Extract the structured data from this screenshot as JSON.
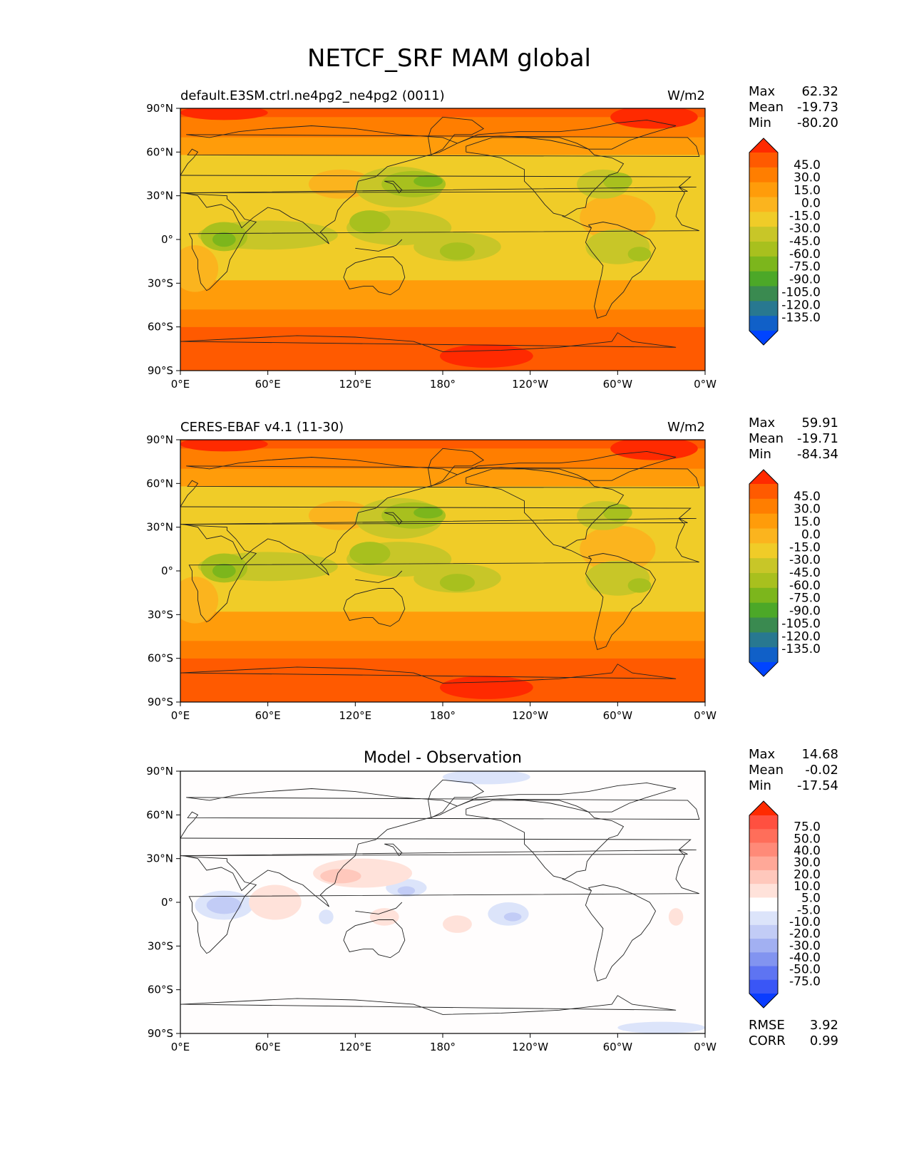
{
  "figure": {
    "title": "NETCF_SRF MAM global"
  },
  "chart_data": [
    {
      "type": "heatmap",
      "name": "test",
      "title_left": "default.E3SM.ctrl.ne4pg2_ne4pg2 (0011)",
      "title_center": "",
      "units": "W/m2",
      "stats": [
        {
          "label": "Max",
          "value": "62.32"
        },
        {
          "label": "Mean",
          "value": "-19.73"
        },
        {
          "label": "Min",
          "value": "-80.20"
        }
      ],
      "footer_stats": [],
      "colorbar": {
        "levels": [
          "45.0",
          "30.0",
          "15.0",
          "0.0",
          "-15.0",
          "-30.0",
          "-45.0",
          "-60.0",
          "-75.0",
          "-90.0",
          "-105.0",
          "-120.0",
          "-135.0"
        ],
        "colors": [
          "#ff2a00",
          "#ff5a00",
          "#ff7e00",
          "#ff9c0a",
          "#fbb41e",
          "#f0cc28",
          "#c8c628",
          "#a8c01e",
          "#7cb61c",
          "#4ca828",
          "#3a8a50",
          "#287890",
          "#1060c8",
          "#0044ff"
        ]
      },
      "xaxis": {
        "ticks": [
          "0°E",
          "60°E",
          "120°E",
          "180°",
          "120°W",
          "60°W",
          "0°W"
        ],
        "lim": [
          0,
          360
        ]
      },
      "yaxis": {
        "ticks": [
          "90°N",
          "60°N",
          "30°N",
          "0°",
          "30°S",
          "60°S",
          "90°S"
        ],
        "lim": [
          -90,
          90
        ]
      }
    },
    {
      "type": "heatmap",
      "name": "reference",
      "title_left": "CERES-EBAF v4.1 (11-30)",
      "title_center": "",
      "units": "W/m2",
      "stats": [
        {
          "label": "Max",
          "value": "59.91"
        },
        {
          "label": "Mean",
          "value": "-19.71"
        },
        {
          "label": "Min",
          "value": "-84.34"
        }
      ],
      "footer_stats": [],
      "colorbar": {
        "levels": [
          "45.0",
          "30.0",
          "15.0",
          "0.0",
          "-15.0",
          "-30.0",
          "-45.0",
          "-60.0",
          "-75.0",
          "-90.0",
          "-105.0",
          "-120.0",
          "-135.0"
        ],
        "colors": [
          "#ff2a00",
          "#ff5a00",
          "#ff7e00",
          "#ff9c0a",
          "#fbb41e",
          "#f0cc28",
          "#c8c628",
          "#a8c01e",
          "#7cb61c",
          "#4ca828",
          "#3a8a50",
          "#287890",
          "#1060c8",
          "#0044ff"
        ]
      },
      "xaxis": {
        "ticks": [
          "0°E",
          "60°E",
          "120°E",
          "180°",
          "120°W",
          "60°W",
          "0°W"
        ],
        "lim": [
          0,
          360
        ]
      },
      "yaxis": {
        "ticks": [
          "90°N",
          "60°N",
          "30°N",
          "0°",
          "30°S",
          "60°S",
          "90°S"
        ],
        "lim": [
          -90,
          90
        ]
      }
    },
    {
      "type": "heatmap",
      "name": "difference",
      "title_left": "",
      "title_center": "Model - Observation",
      "units": "",
      "stats": [
        {
          "label": "Max",
          "value": "14.68"
        },
        {
          "label": "Mean",
          "value": "-0.02"
        },
        {
          "label": "Min",
          "value": "-17.54"
        }
      ],
      "footer_stats": [
        {
          "label": "RMSE",
          "value": "3.92"
        },
        {
          "label": "CORR",
          "value": "0.99"
        }
      ],
      "colorbar": {
        "levels": [
          "75.0",
          "50.0",
          "40.0",
          "30.0",
          "20.0",
          "10.0",
          "5.0",
          "-5.0",
          "-10.0",
          "-20.0",
          "-30.0",
          "-40.0",
          "-50.0",
          "-75.0"
        ],
        "colors": [
          "#ff2a00",
          "#ff5040",
          "#ff6e5a",
          "#ff8a78",
          "#ffa898",
          "#ffc8bc",
          "#ffe2da",
          "#ffffff",
          "#dce4fa",
          "#c2ccf6",
          "#a2b0f2",
          "#8294f0",
          "#5e74f2",
          "#3a56f6",
          "#0a3cff"
        ]
      },
      "xaxis": {
        "ticks": [
          "0°E",
          "60°E",
          "120°E",
          "180°",
          "120°W",
          "60°W",
          "0°W"
        ],
        "lim": [
          0,
          360
        ]
      },
      "yaxis": {
        "ticks": [
          "90°N",
          "60°N",
          "30°N",
          "0°",
          "30°S",
          "60°S",
          "90°S"
        ],
        "lim": [
          -90,
          90
        ]
      }
    }
  ]
}
